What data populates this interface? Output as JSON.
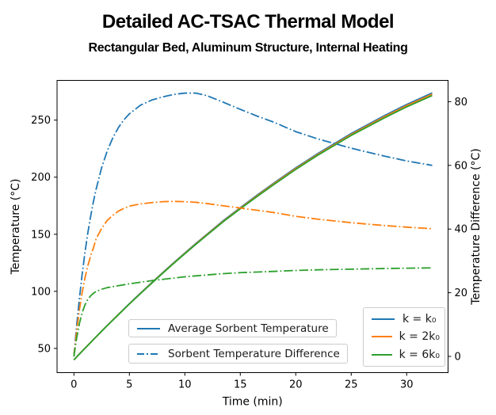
{
  "title": "Detailed AC-TSAC Thermal Model",
  "subtitle": "Rectangular Bed, Aluminum Structure, Internal Heating",
  "chart_data": {
    "type": "line",
    "title": "Detailed AC-TSAC Thermal Model",
    "subtitle": "Rectangular Bed, Aluminum Structure, Internal Heating",
    "xlabel": "Time (min)",
    "ylabel_left": "Temperature (°C)",
    "ylabel_right": "Temperature Difference (°C)",
    "x_ticks": [
      0,
      5,
      10,
      15,
      20,
      25,
      30
    ],
    "y_ticks_left": [
      50,
      100,
      150,
      200,
      250
    ],
    "y_ticks_right": [
      0,
      20,
      40,
      60,
      80
    ],
    "xlim": [
      -1.52,
      33.73
    ],
    "ylim_left": [
      28.8,
      284.8
    ],
    "ylim_right": [
      -5.1,
      86.7
    ],
    "grid": false,
    "x": [
      0,
      0.25,
      0.5,
      0.75,
      1,
      1.25,
      1.5,
      1.75,
      2,
      2.5,
      3,
      3.5,
      4,
      4.5,
      5,
      6,
      7,
      8,
      9,
      10,
      11,
      12,
      13.5,
      15,
      16.5,
      18,
      20,
      22,
      25,
      28,
      30,
      32.3
    ],
    "series": [
      {
        "name": "Average Sorbent Temperature, k = k0",
        "axis": "left",
        "style": "solid",
        "color": "#1f77b4",
        "values": [
          40,
          42.6,
          45.1,
          47.7,
          50.2,
          52.7,
          55.2,
          57.8,
          60.2,
          65.2,
          70.1,
          74.9,
          79.7,
          84.5,
          89.2,
          98.4,
          107.5,
          116.4,
          125.1,
          133.6,
          142,
          150.1,
          162.2,
          173.3,
          184.2,
          194.7,
          208.2,
          220.8,
          238.3,
          254,
          263.7,
          273.8
        ]
      },
      {
        "name": "Average Sorbent Temperature, k = 2k0",
        "axis": "left",
        "style": "solid",
        "color": "#ff7f0e",
        "values": [
          40,
          42.6,
          45.1,
          47.7,
          50.2,
          52.7,
          55.2,
          57.7,
          60.1,
          65.1,
          70,
          74.8,
          79.6,
          84.3,
          89,
          98.2,
          107.3,
          116.1,
          124.8,
          133.3,
          141.6,
          149.7,
          161.7,
          172.8,
          183.6,
          194.1,
          207.5,
          220,
          237.4,
          253,
          262.7,
          272.7
        ]
      },
      {
        "name": "Average Sorbent Temperature, k = 6k0",
        "axis": "left",
        "style": "solid",
        "color": "#2ca02c",
        "values": [
          40,
          42.6,
          45.1,
          47.6,
          50.1,
          52.6,
          55.1,
          57.7,
          60.1,
          65,
          69.9,
          74.7,
          79.4,
          84.2,
          88.9,
          98,
          107,
          115.8,
          124.5,
          132.9,
          141.2,
          149.3,
          161.3,
          172.3,
          183,
          193.4,
          206.8,
          219.3,
          236.6,
          252,
          261.6,
          271.5
        ]
      },
      {
        "name": "Sorbent Temperature Difference, k = k0",
        "axis": "right",
        "style": "dashdot",
        "color": "#1f77b4",
        "values": [
          0,
          9.8,
          18.3,
          26,
          32.7,
          38.7,
          43.8,
          48.5,
          52.5,
          59.3,
          64.5,
          68.6,
          71.8,
          74.3,
          76.2,
          78.9,
          80.5,
          81.5,
          82.3,
          82.7,
          82.7,
          81.9,
          79.8,
          77.6,
          75.5,
          73.6,
          70.6,
          68.3,
          65.4,
          62.9,
          61.4,
          60
        ]
      },
      {
        "name": "Sorbent Temperature Difference, k = 2k0",
        "axis": "right",
        "style": "dashdot",
        "color": "#ff7f0e",
        "values": [
          0,
          8,
          14.7,
          20.2,
          24.7,
          28.4,
          31.5,
          34,
          36.9,
          40.2,
          42.7,
          44.3,
          45.6,
          46.5,
          47.2,
          47.9,
          48.3,
          48.6,
          48.7,
          48.6,
          48.4,
          48,
          47.3,
          46.6,
          45.9,
          45.2,
          44,
          43.1,
          42,
          41.1,
          40.6,
          40.1
        ]
      },
      {
        "name": "Sorbent Temperature Difference, k = 6k0",
        "axis": "right",
        "style": "dashdot",
        "color": "#2ca02c",
        "values": [
          0,
          5.8,
          10.4,
          13.8,
          16.2,
          17.9,
          19,
          19.8,
          20.4,
          21.1,
          21.6,
          21.9,
          22.2,
          22.5,
          22.8,
          23.3,
          23.8,
          24.2,
          24.6,
          25,
          25.3,
          25.6,
          26,
          26.3,
          26.5,
          26.7,
          27,
          27.2,
          27.4,
          27.6,
          27.7,
          27.8
        ]
      }
    ],
    "legend_styles": [
      {
        "label": "Average Sorbent Temperature",
        "style": "solid",
        "color": "#1f77b4"
      },
      {
        "label": "Sorbent Temperature Difference",
        "style": "dashdot",
        "color": "#1f77b4"
      }
    ],
    "legend_k": [
      {
        "label": "k = k₀",
        "color": "#1f77b4"
      },
      {
        "label": "k = 2k₀",
        "color": "#ff7f0e"
      },
      {
        "label": "k = 6k₀",
        "color": "#2ca02c"
      }
    ],
    "colors": {
      "blue": "#1f77b4",
      "orange": "#ff7f0e",
      "green": "#2ca02c",
      "spine": "#000000",
      "legend_border": "#cccccc"
    }
  }
}
